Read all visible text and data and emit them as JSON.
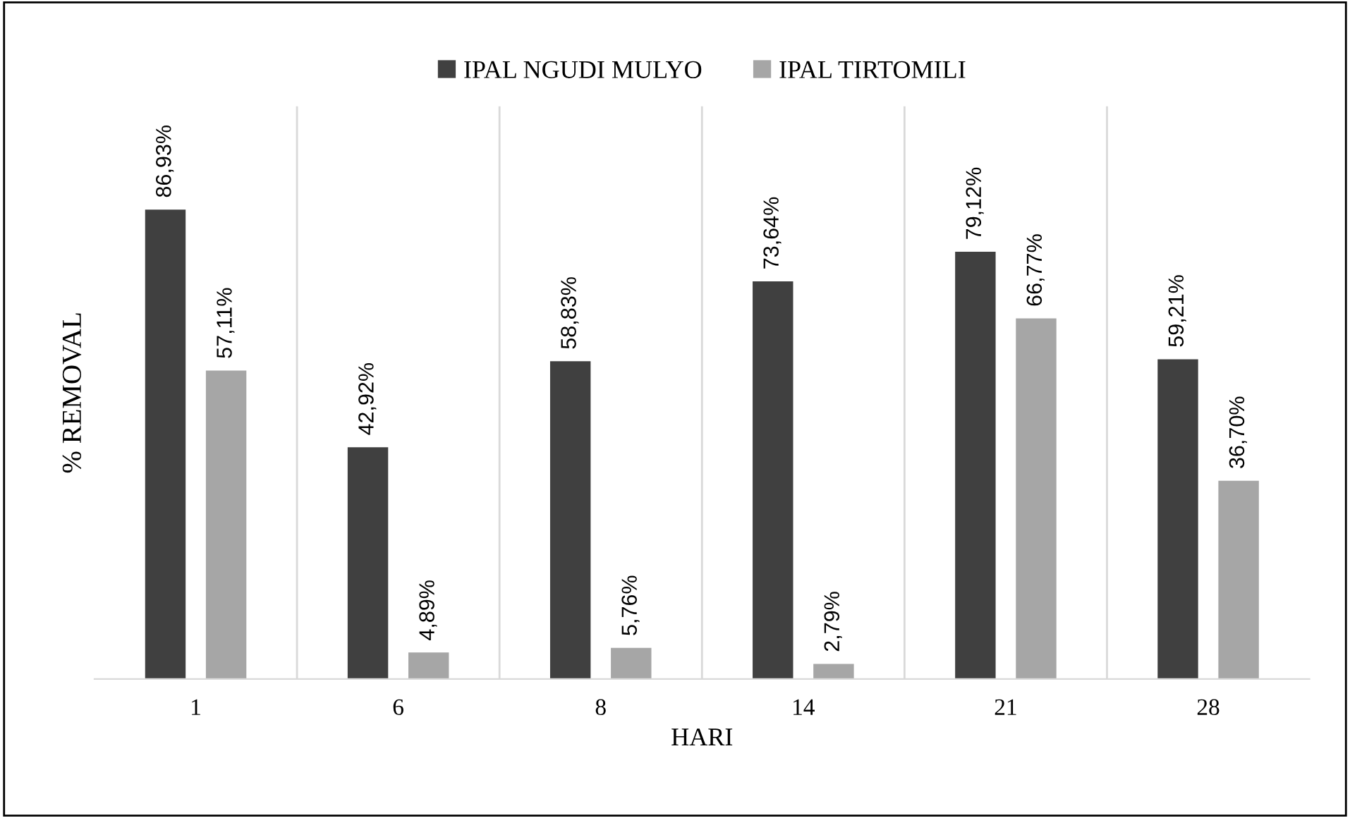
{
  "chart_data": {
    "type": "bar",
    "xlabel": "HARI",
    "ylabel": "% REMOVAL",
    "categories": [
      "1",
      "6",
      "8",
      "14",
      "21",
      "28"
    ],
    "series": [
      {
        "name": "IPAL NGUDI MULYO",
        "color": "#404040",
        "values": [
          86.93,
          42.92,
          58.83,
          73.64,
          79.12,
          59.21
        ],
        "value_labels": [
          "86,93%",
          "42,92%",
          "58,83%",
          "73,64%",
          "79,12%",
          "59,21%"
        ]
      },
      {
        "name": "IPAL TIRTOMILI",
        "color": "#a6a6a6",
        "values": [
          57.11,
          4.89,
          5.76,
          2.79,
          66.77,
          36.7
        ],
        "value_labels": [
          "57,11%",
          "4,89%",
          "5,76%",
          "2,79%",
          "66,77%",
          "36,70%"
        ]
      }
    ],
    "grid": "x",
    "legend": "top"
  }
}
